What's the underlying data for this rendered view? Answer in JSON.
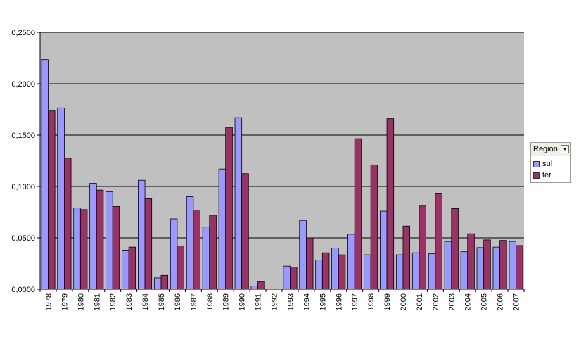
{
  "chart_data": {
    "type": "bar",
    "categories": [
      "1978",
      "1979",
      "1980",
      "1981",
      "1982",
      "1983",
      "1984",
      "1985",
      "1986",
      "1987",
      "1988",
      "1989",
      "1990",
      "1991",
      "1992",
      "1993",
      "1994",
      "1995",
      "1996",
      "1997",
      "1998",
      "1999",
      "2000",
      "2001",
      "2002",
      "2003",
      "2004",
      "2005",
      "2006",
      "2007"
    ],
    "series": [
      {
        "name": "sul",
        "color": "#9999ff",
        "values": [
          0.2235,
          0.1765,
          0.079,
          0.103,
          0.095,
          0.038,
          0.106,
          0.011,
          0.0685,
          0.09,
          0.0605,
          0.117,
          0.167,
          0.003,
          0.0,
          0.0225,
          0.067,
          0.0285,
          0.04,
          0.0535,
          0.0335,
          0.076,
          0.0335,
          0.0355,
          0.0345,
          0.0465,
          0.0365,
          0.0405,
          0.041,
          0.0465
        ]
      },
      {
        "name": "ter",
        "color": "#993366",
        "values": [
          0.1735,
          0.1275,
          0.0775,
          0.0965,
          0.0805,
          0.041,
          0.088,
          0.0135,
          0.042,
          0.077,
          0.072,
          0.1575,
          0.1125,
          0.0075,
          0.0,
          0.0215,
          0.05,
          0.0355,
          0.0335,
          0.1465,
          0.121,
          0.166,
          0.0615,
          0.081,
          0.0935,
          0.0785,
          0.054,
          0.048,
          0.0475,
          0.0425
        ]
      }
    ],
    "ylim": [
      0,
      0.25
    ],
    "yticks": [
      0,
      0.05,
      0.1,
      0.15,
      0.2,
      0.25
    ],
    "ytick_labels": [
      "0,0000",
      "0,0500",
      "0,1000",
      "0,1500",
      "0,2000",
      "0,2500"
    ],
    "grid": true,
    "plot_background": "#c0c0c0",
    "legend_placement": "right",
    "legend_title": "Region"
  }
}
